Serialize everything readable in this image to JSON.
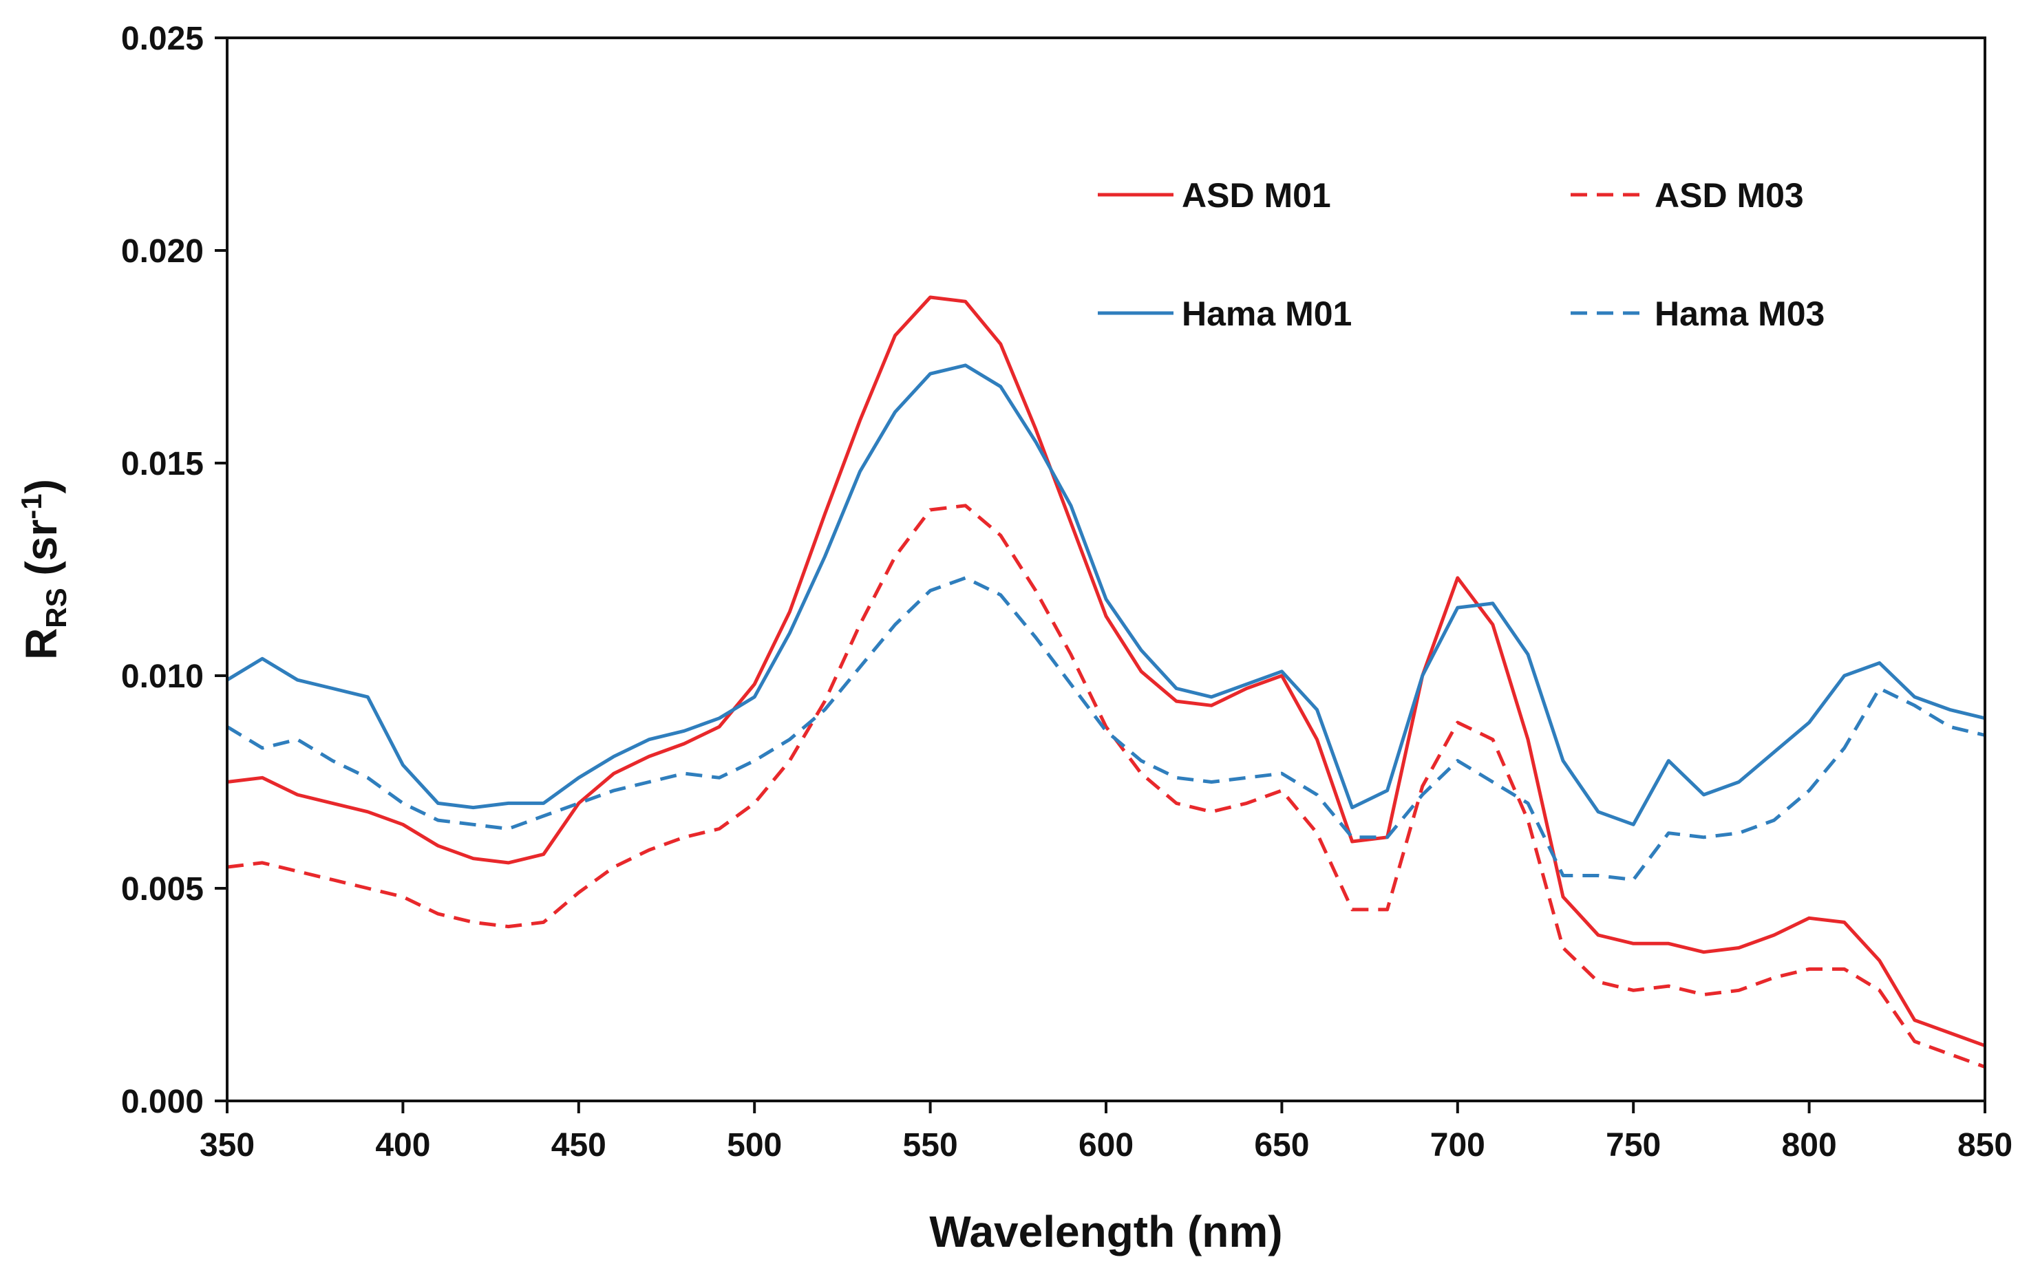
{
  "chart_data": {
    "type": "line",
    "xlabel": "Wavelength (nm)",
    "ylabel": {
      "main": "R",
      "sub": "RS",
      "unit_open": " (sr",
      "unit_sup": "-1",
      "unit_close": ")"
    },
    "xlim": [
      350,
      850
    ],
    "ylim": [
      0,
      0.025
    ],
    "x_ticks": [
      "350",
      "400",
      "450",
      "500",
      "550",
      "600",
      "650",
      "700",
      "750",
      "800",
      "850"
    ],
    "y_ticks": [
      "0.000",
      "0.005",
      "0.010",
      "0.015",
      "0.020",
      "0.025"
    ],
    "grid": false,
    "legend_position": "top-right",
    "x": [
      350,
      360,
      370,
      380,
      390,
      400,
      410,
      420,
      430,
      440,
      450,
      460,
      470,
      480,
      490,
      500,
      510,
      520,
      530,
      540,
      550,
      560,
      570,
      580,
      590,
      600,
      610,
      620,
      630,
      640,
      650,
      660,
      670,
      680,
      690,
      700,
      710,
      720,
      730,
      740,
      750,
      760,
      770,
      780,
      790,
      800,
      810,
      820,
      830,
      840,
      850
    ],
    "series": [
      {
        "name": "ASD M01",
        "color": "#e8282b",
        "dash": "solid",
        "values": [
          0.0075,
          0.0076,
          0.0072,
          0.007,
          0.0068,
          0.0065,
          0.006,
          0.0057,
          0.0056,
          0.0058,
          0.007,
          0.0077,
          0.0081,
          0.0084,
          0.0088,
          0.0098,
          0.0115,
          0.0138,
          0.016,
          0.018,
          0.0189,
          0.0188,
          0.0178,
          0.0158,
          0.0136,
          0.0114,
          0.0101,
          0.0094,
          0.0093,
          0.0097,
          0.01,
          0.0085,
          0.0061,
          0.0062,
          0.01,
          0.0123,
          0.0112,
          0.0085,
          0.0048,
          0.0039,
          0.0037,
          0.0037,
          0.0035,
          0.0036,
          0.0039,
          0.0043,
          0.0042,
          0.0033,
          0.0019,
          0.0016,
          0.0013
        ]
      },
      {
        "name": "ASD M03",
        "color": "#e8282b",
        "dash": "dashed",
        "values": [
          0.0055,
          0.0056,
          0.0054,
          0.0052,
          0.005,
          0.0048,
          0.0044,
          0.0042,
          0.0041,
          0.0042,
          0.0049,
          0.0055,
          0.0059,
          0.0062,
          0.0064,
          0.007,
          0.008,
          0.0094,
          0.0112,
          0.0128,
          0.0139,
          0.014,
          0.0133,
          0.012,
          0.0105,
          0.0088,
          0.0077,
          0.007,
          0.0068,
          0.007,
          0.0073,
          0.0063,
          0.0045,
          0.0045,
          0.0074,
          0.0089,
          0.0085,
          0.0066,
          0.0036,
          0.0028,
          0.0026,
          0.0027,
          0.0025,
          0.0026,
          0.0029,
          0.0031,
          0.0031,
          0.0026,
          0.0014,
          0.0011,
          0.0008
        ]
      },
      {
        "name": "Hama M01",
        "color": "#2f7ebd",
        "dash": "solid",
        "values": [
          0.0099,
          0.0104,
          0.0099,
          0.0097,
          0.0095,
          0.0079,
          0.007,
          0.0069,
          0.007,
          0.007,
          0.0076,
          0.0081,
          0.0085,
          0.0087,
          0.009,
          0.0095,
          0.011,
          0.0128,
          0.0148,
          0.0162,
          0.0171,
          0.0173,
          0.0168,
          0.0155,
          0.014,
          0.0118,
          0.0106,
          0.0097,
          0.0095,
          0.0098,
          0.0101,
          0.0092,
          0.0069,
          0.0073,
          0.01,
          0.0116,
          0.0117,
          0.0105,
          0.008,
          0.0068,
          0.0065,
          0.008,
          0.0072,
          0.0075,
          0.0082,
          0.0089,
          0.01,
          0.0103,
          0.0095,
          0.0092,
          0.009
        ]
      },
      {
        "name": "Hama M03",
        "color": "#2f7ebd",
        "dash": "dashed",
        "values": [
          0.0088,
          0.0083,
          0.0085,
          0.008,
          0.0076,
          0.007,
          0.0066,
          0.0065,
          0.0064,
          0.0067,
          0.007,
          0.0073,
          0.0075,
          0.0077,
          0.0076,
          0.008,
          0.0085,
          0.0092,
          0.0102,
          0.0112,
          0.012,
          0.0123,
          0.0119,
          0.0109,
          0.0098,
          0.0087,
          0.008,
          0.0076,
          0.0075,
          0.0076,
          0.0077,
          0.0072,
          0.0062,
          0.0062,
          0.0072,
          0.008,
          0.0075,
          0.007,
          0.0053,
          0.0053,
          0.0052,
          0.0063,
          0.0062,
          0.0063,
          0.0066,
          0.0073,
          0.0083,
          0.0097,
          0.0093,
          0.0088,
          0.0086
        ]
      }
    ]
  }
}
